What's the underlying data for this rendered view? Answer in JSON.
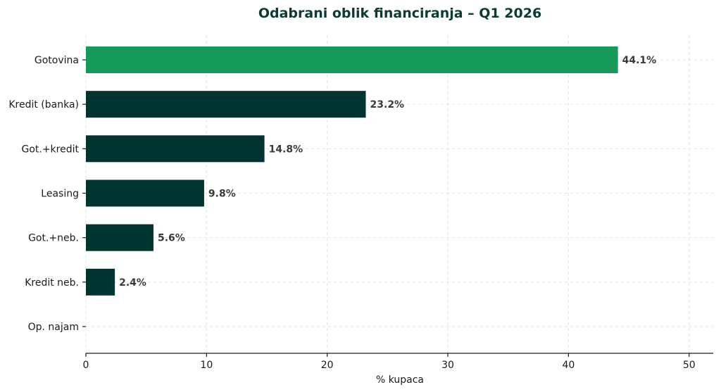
{
  "chart_data": {
    "type": "bar",
    "orientation": "horizontal",
    "title": "Odabrani oblik financiranja – Q1 2026",
    "xlabel": "% kupaca",
    "ylabel": "",
    "xlim": [
      0,
      52
    ],
    "xticks": [
      0,
      10,
      20,
      30,
      40,
      50
    ],
    "grid": true,
    "categories": [
      "Gotovina",
      "Kredit (banka)",
      "Got.+kredit",
      "Leasing",
      "Got.+neb.",
      "Kredit neb.",
      "Op. najam"
    ],
    "values": [
      44.1,
      23.2,
      14.8,
      9.8,
      5.6,
      2.4,
      0
    ],
    "data_labels": [
      "44.1%",
      "23.2%",
      "14.8%",
      "9.8%",
      "5.6%",
      "2.4%",
      ""
    ],
    "colors": {
      "highlight": "#169a5a",
      "default": "#013430",
      "title": "#0b3b33"
    },
    "highlight_index": 0
  }
}
